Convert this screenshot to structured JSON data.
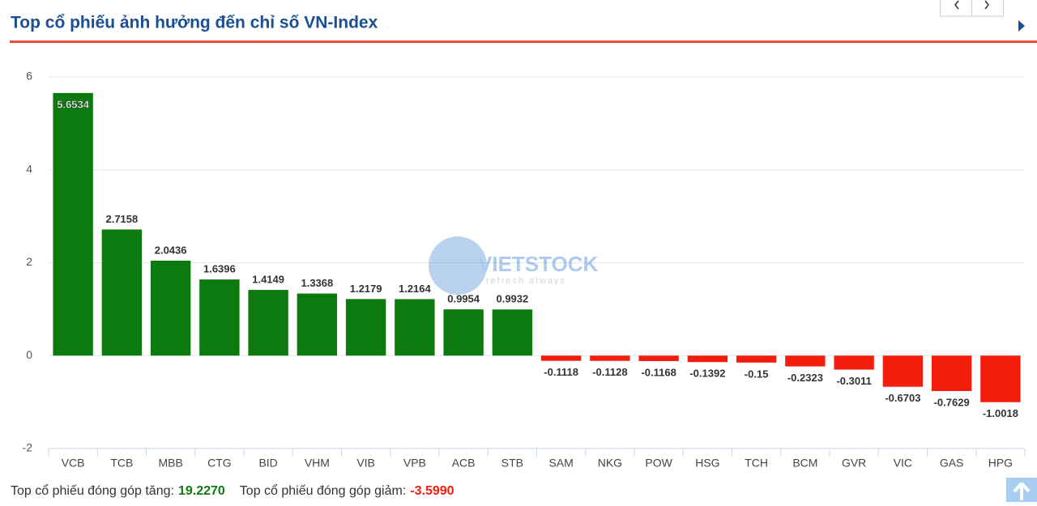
{
  "chart_data": {
    "type": "bar",
    "title": "Top cổ phiếu ảnh hưởng đến chỉ số VN-Index",
    "categories": [
      "VCB",
      "TCB",
      "MBB",
      "CTG",
      "BID",
      "VHM",
      "VIB",
      "VPB",
      "ACB",
      "STB",
      "SAM",
      "NKG",
      "POW",
      "HSG",
      "TCH",
      "BCM",
      "GVR",
      "VIC",
      "GAS",
      "HPG"
    ],
    "values": [
      5.6534,
      2.7158,
      2.0436,
      1.6396,
      1.4149,
      1.3368,
      1.2179,
      1.2164,
      0.9954,
      0.9932,
      -0.1118,
      -0.1128,
      -0.1168,
      -0.1392,
      -0.15,
      -0.2323,
      -0.3011,
      -0.6703,
      -0.7629,
      -1.0018
    ],
    "positive_color": "#0d7a10",
    "negative_color": "#f31d0d",
    "ylim": [
      -2,
      6
    ],
    "yticks": [
      -2,
      0,
      2,
      4,
      6
    ],
    "grid": true,
    "watermark": "VIETSTOCK",
    "watermark_tagline": "refresh always",
    "summary": [
      {
        "label": "Top cổ phiếu đóng góp tăng:",
        "value": "19.2270",
        "color": "#0d7a10"
      },
      {
        "label": "Top cổ phiếu đóng góp giảm:",
        "value": "-3.5990",
        "color": "#f31d0d"
      }
    ]
  }
}
